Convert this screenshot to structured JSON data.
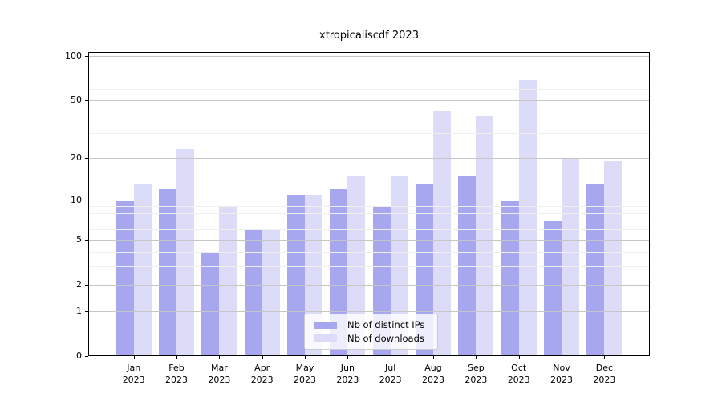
{
  "chart_data": {
    "type": "bar",
    "title": "xtropicaliscdf 2023",
    "categories": [
      "Jan",
      "Feb",
      "Mar",
      "Apr",
      "May",
      "Jun",
      "Jul",
      "Aug",
      "Sep",
      "Oct",
      "Nov",
      "Dec"
    ],
    "category_year": "2023",
    "series": [
      {
        "name": "Nb of distinct IPs",
        "color": "#a7a7ef",
        "values": [
          10,
          12,
          4,
          6,
          11,
          12,
          9,
          13,
          15,
          10,
          7,
          13
        ]
      },
      {
        "name": "Nb of downloads",
        "color": "#dcdcf8",
        "values": [
          13,
          23,
          9,
          6,
          11,
          15,
          15,
          42,
          39,
          69,
          20,
          19
        ]
      }
    ],
    "yscale": "log10(value+1)",
    "yticks_major": [
      0,
      1,
      2,
      5,
      10,
      20,
      50,
      100
    ],
    "yticks_minor": [
      3,
      4,
      6,
      7,
      8,
      9,
      30,
      40,
      60,
      70,
      80,
      90
    ],
    "ylim": [
      0,
      107
    ],
    "xlabel": "",
    "ylabel": "",
    "grid": "on",
    "legend": {
      "position": "inside-bottom-center",
      "entries": [
        "Nb of distinct IPs",
        "Nb of downloads"
      ]
    }
  },
  "colors": {
    "background": "#ffffff",
    "axis": "#000000",
    "grid_major": "#c6c6c6",
    "grid_minor": "#efefef",
    "bar_ips": "#a7a7ef",
    "bar_downloads": "#dcdcf8"
  }
}
